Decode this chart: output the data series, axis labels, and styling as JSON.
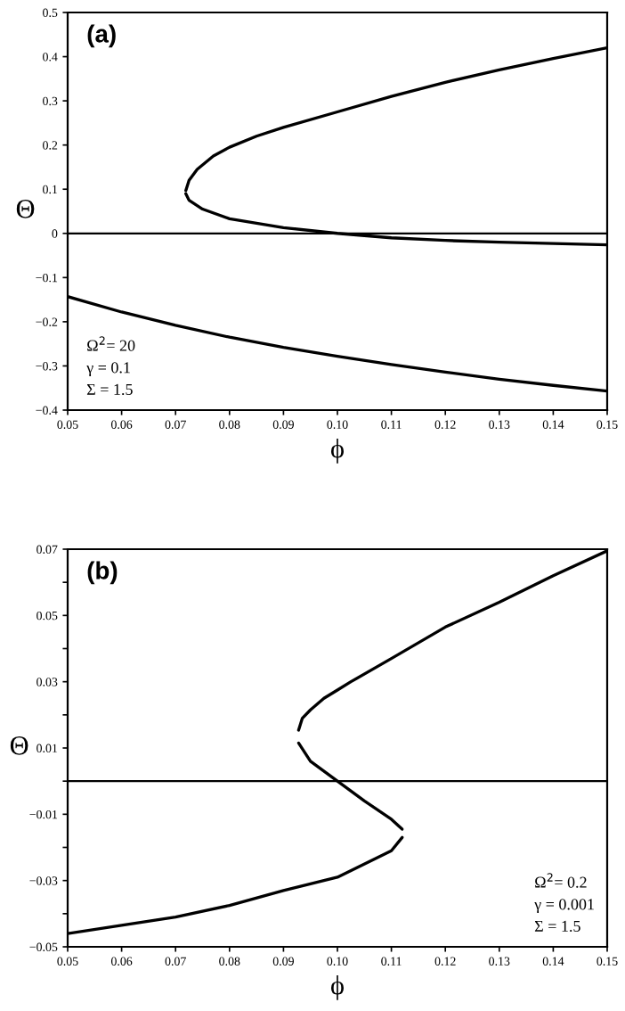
{
  "chart_data": [
    {
      "type": "line",
      "xlabel": "ϕ",
      "ylabel": "Θ",
      "annotations": [
        "(a)",
        "Ω$^{2}$= 20",
        "γ = 0.1",
        "Σ = 1.5"
      ],
      "series": [
        {
          "color": "#000000",
          "x": [
            0.0719,
            0.0725,
            0.074,
            0.077,
            0.08,
            0.085,
            0.09,
            0.1,
            0.11,
            0.12,
            0.13,
            0.14,
            0.15
          ],
          "values": [
            0.097,
            0.12,
            0.145,
            0.175,
            0.195,
            0.22,
            0.24,
            0.275,
            0.31,
            0.342,
            0.37,
            0.396,
            0.42
          ]
        },
        {
          "color": "#000000",
          "x": [
            0.0719,
            0.0725,
            0.075,
            0.08,
            0.09,
            0.1,
            0.11,
            0.12,
            0.13,
            0.14,
            0.15
          ],
          "values": [
            0.09,
            0.075,
            0.055,
            0.033,
            0.013,
            0.0,
            -0.01,
            -0.016,
            -0.02,
            -0.023,
            -0.026
          ]
        },
        {
          "color": "#000000",
          "x": [
            0.05,
            0.06,
            0.07,
            0.08,
            0.09,
            0.1,
            0.11,
            0.12,
            0.13,
            0.14,
            0.15
          ],
          "values": [
            -0.143,
            -0.178,
            -0.208,
            -0.235,
            -0.258,
            -0.278,
            -0.297,
            -0.314,
            -0.33,
            -0.344,
            -0.357
          ]
        }
      ],
      "ref_lines": [
        {
          "axis": "y",
          "value": 0,
          "color": "#000000"
        }
      ],
      "xlim": [
        0.05,
        0.15
      ],
      "ylim": [
        -0.4,
        0.5
      ],
      "xticks": [
        0.05,
        0.06,
        0.07,
        0.08,
        0.09,
        {
          "value": 0.1,
          "label": "0.10"
        },
        0.11,
        0.12,
        0.13,
        0.14,
        0.15
      ],
      "yticks": [
        {
          "value": -0.4,
          "label": "−0.4"
        },
        {
          "value": -0.3,
          "label": "−0.3"
        },
        {
          "value": -0.2,
          "label": "−0.2"
        },
        {
          "value": -0.1,
          "label": "−0.1"
        },
        0,
        0.1,
        0.2,
        0.3,
        0.4,
        0.5
      ],
      "grid": false,
      "legend": false,
      "marker": "none",
      "line_style": "solid"
    },
    {
      "type": "line",
      "xlabel": "ϕ",
      "ylabel": "Θ",
      "annotations": [
        "(b)",
        "Ω$^{2}$= 0.2",
        "γ = 0.001",
        "Σ = 1.5"
      ],
      "series": [
        {
          "color": "#000000",
          "x": [
            0.0928,
            0.0935,
            0.095,
            0.0975,
            0.1,
            0.1025,
            0.11,
            0.12,
            0.13,
            0.14,
            0.15
          ],
          "values": [
            0.0154,
            0.019,
            0.0215,
            0.025,
            0.0275,
            0.03,
            0.037,
            0.0465,
            0.054,
            0.062,
            0.0695
          ]
        },
        {
          "color": "#000000",
          "x": [
            0.0928,
            0.095,
            0.1,
            0.105,
            0.11,
            0.112
          ],
          "values": [
            0.0115,
            0.006,
            0.0,
            -0.006,
            -0.0115,
            -0.0145
          ]
        },
        {
          "color": "#000000",
          "x": [
            0.112,
            0.11,
            0.1,
            0.09,
            0.08,
            0.07,
            0.06,
            0.05
          ],
          "values": [
            -0.017,
            -0.021,
            -0.029,
            -0.033,
            -0.0375,
            -0.041,
            -0.0435,
            -0.046
          ]
        }
      ],
      "ref_lines": [
        {
          "axis": "y",
          "value": 0,
          "color": "#000000"
        }
      ],
      "xlim": [
        0.05,
        0.15
      ],
      "ylim": [
        -0.05,
        0.07
      ],
      "xticks": [
        0.05,
        0.06,
        0.07,
        0.08,
        0.09,
        {
          "value": 0.1,
          "label": "0.10"
        },
        0.11,
        0.12,
        0.13,
        0.14,
        0.15
      ],
      "yticks": [
        {
          "value": -0.05,
          "label": "−0.05"
        },
        {
          "value": -0.04,
          "label": null
        },
        {
          "value": -0.03,
          "label": "−0.03"
        },
        {
          "value": -0.02,
          "label": null
        },
        {
          "value": -0.01,
          "label": "−0.01"
        },
        {
          "value": 0,
          "label": null
        },
        0.01,
        {
          "value": 0.02,
          "label": null
        },
        0.03,
        {
          "value": 0.04,
          "label": null
        },
        0.05,
        {
          "value": 0.06,
          "label": null
        },
        0.07
      ],
      "grid": false,
      "legend": false,
      "marker": "none",
      "line_style": "solid"
    }
  ]
}
